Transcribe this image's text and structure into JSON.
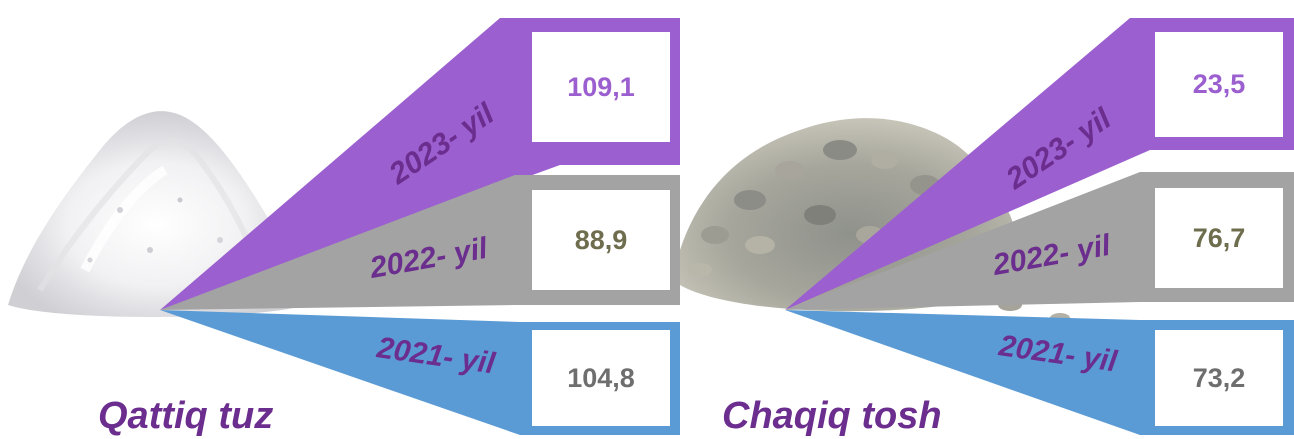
{
  "colors": {
    "year_2023_fill": "#9b5fcf",
    "year_2022_fill": "#a3a3a3",
    "year_2021_fill": "#5b9bd5",
    "year_label_text": "#6b2d8e",
    "value_2023_text": "#9b5fcf",
    "value_2022_text": "#6e6e4e",
    "value_2021_text": "#6e6e6e",
    "product_label_text": "#6b2d8e"
  },
  "images": {
    "left": "salt-pile-photo",
    "right": "crushed-stone-pile-photo"
  },
  "panels": [
    {
      "product": "Qattiq tuz",
      "rows": [
        {
          "year": "2023- yil",
          "value": "109,1"
        },
        {
          "year": "2022- yil",
          "value": "88,9"
        },
        {
          "year": "2021- yil",
          "value": "104,8"
        }
      ]
    },
    {
      "product": "Chaqiq tosh",
      "rows": [
        {
          "year": "2023- yil",
          "value": "23,5"
        },
        {
          "year": "2022- yil",
          "value": "76,7"
        },
        {
          "year": "2021- yil",
          "value": "73,2"
        }
      ]
    }
  ]
}
